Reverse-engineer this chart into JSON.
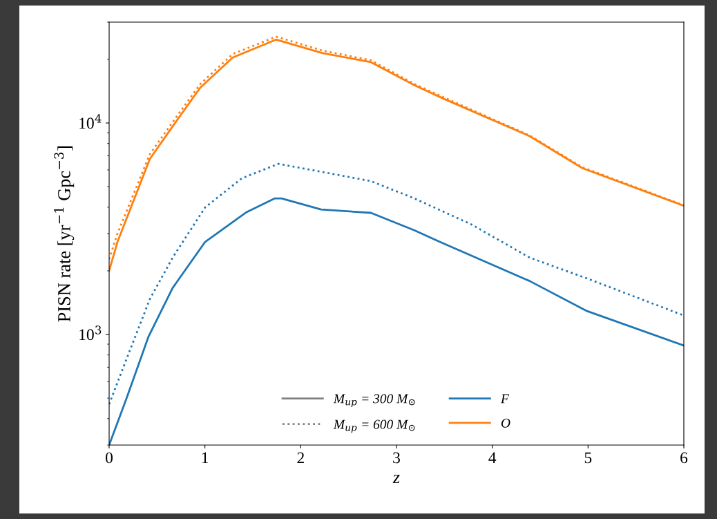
{
  "chart_data": {
    "type": "line",
    "xlabel": "z",
    "ylabel": "PISN rate [yr$^{−1}$ Gpc$^{−3}$]",
    "log": "y",
    "xlim": [
      0,
      6
    ],
    "xticks": [
      0,
      1,
      2,
      3,
      4,
      5,
      6
    ],
    "ylim": [
      300,
      30000
    ],
    "yticks": [
      {
        "value": 1000,
        "label": "10$^{3}$"
      },
      {
        "value": 10000,
        "label": "10$^{4}$"
      }
    ],
    "grid": false,
    "legend": "bottom",
    "marker": "none",
    "annotations": [
      "M$_{up}$ = 300 M$_{⊙}$",
      "M$_{up}$ = 600 M$_{⊙}$"
    ],
    "series": [
      {
        "name": "F",
        "color": "#1f77b4",
        "line_style": "solid",
        "x": [
          0,
          0.18,
          0.411,
          0.663,
          1.002,
          1.435,
          1.73,
          1.8,
          2.213,
          2.733,
          3.187,
          3.453,
          4.39,
          4.99,
          6.0
        ],
        "values": [
          300,
          497,
          977,
          1660,
          2740,
          3790,
          4400,
          4400,
          3900,
          3760,
          3110,
          2740,
          1790,
          1290,
          887
        ]
      },
      {
        "color": "#1f77b4",
        "line_style": "dotted",
        "x": [
          0,
          0.18,
          0.425,
          0.663,
          1.002,
          1.384,
          1.766,
          2.199,
          2.733,
          3.187,
          3.785,
          4.39,
          4.99,
          6.0
        ],
        "values": [
          468,
          762,
          1470,
          2310,
          3990,
          5470,
          6410,
          5900,
          5310,
          4400,
          3310,
          2310,
          1840,
          1230
        ]
      },
      {
        "name": "O",
        "color": "#ff7f0e",
        "line_style": "solid",
        "x": [
          0,
          0.087,
          0.425,
          0.663,
          0.952,
          1.29,
          1.745,
          2.228,
          2.733,
          3.187,
          3.497,
          4.39,
          4.94,
          6.0
        ],
        "values": [
          2000,
          2740,
          6760,
          9640,
          14700,
          20400,
          24800,
          21400,
          19400,
          15100,
          13000,
          8670,
          6120,
          4060
        ]
      },
      {
        "color": "#ff7f0e",
        "line_style": "dotted",
        "x": [
          0,
          0.087,
          0.425,
          0.663,
          0.952,
          1.29,
          1.745,
          2.228,
          2.733,
          3.187,
          3.497,
          4.39,
          4.94,
          6.0
        ],
        "values": [
          2270,
          3000,
          7130,
          10100,
          15300,
          21200,
          25600,
          22000,
          19800,
          15300,
          13200,
          8730,
          6180,
          4080
        ]
      }
    ]
  }
}
